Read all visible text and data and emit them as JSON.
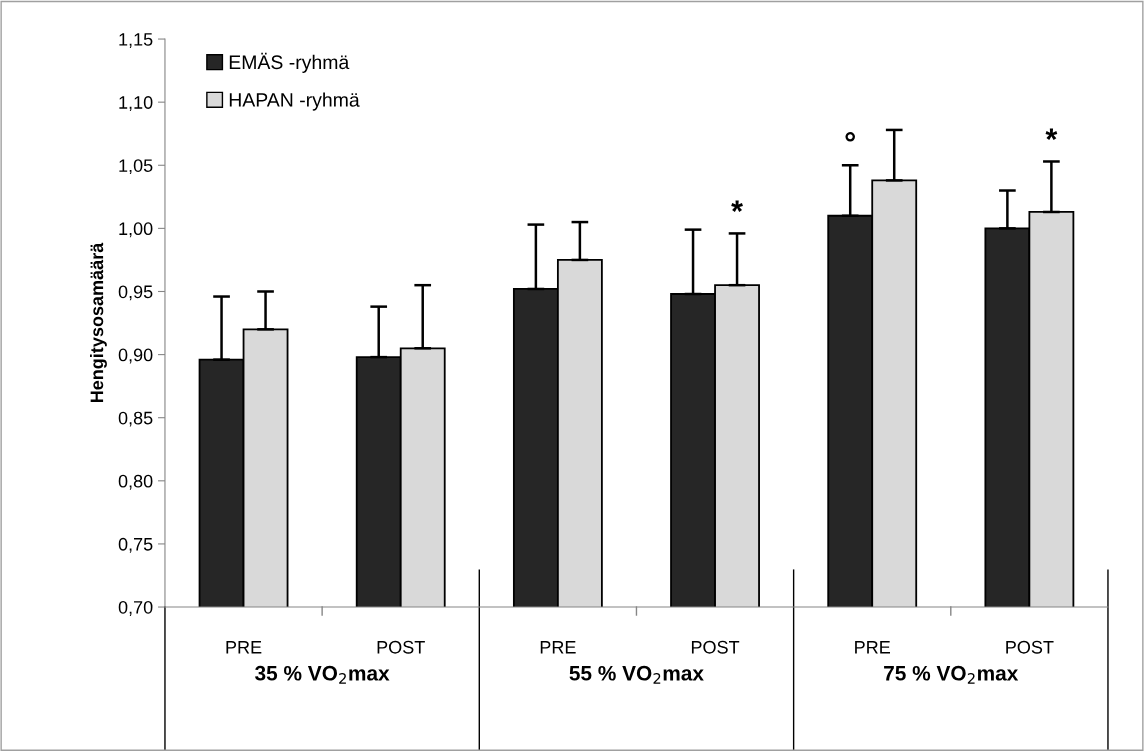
{
  "chart_data": {
    "type": "bar",
    "ylabel": "Hengitysosamäärä",
    "categories": [
      "PRE",
      "POST",
      "PRE",
      "POST",
      "PRE",
      "POST"
    ],
    "series": [
      {
        "name": "EMÄS -ryhmä",
        "color": "#262626",
        "values": [
          0.896,
          0.898,
          0.952,
          0.948,
          1.01,
          1.0
        ],
        "errors": [
          [
            0.896,
            0.946
          ],
          [
            0.898,
            0.938
          ],
          [
            0.952,
            1.003
          ],
          [
            0.948,
            0.999
          ],
          [
            1.01,
            1.05
          ],
          [
            1.0,
            1.03
          ]
        ],
        "value_labels": [
          null,
          null,
          null,
          null,
          "°",
          null
        ]
      },
      {
        "name": "HAPAN -ryhmä",
        "color": "#d9d9d9",
        "values": [
          0.92,
          0.905,
          0.975,
          0.955,
          1.038,
          1.013
        ],
        "errors": [
          [
            0.92,
            0.95
          ],
          [
            0.905,
            0.955
          ],
          [
            0.975,
            1.005
          ],
          [
            0.955,
            0.996
          ],
          [
            1.038,
            1.078
          ],
          [
            1.013,
            1.053
          ]
        ],
        "value_labels": [
          null,
          null,
          null,
          "*",
          null,
          "*"
        ]
      }
    ],
    "annotations": [
      "35 % VO$_{2}$max",
      "55 % VO$_{2}$max",
      "75 % VO$_{2}$max"
    ],
    "ylim": [
      0.7,
      1.15
    ],
    "yticks": [
      {
        "value": 0.7,
        "label": "0,70"
      },
      {
        "value": 0.75,
        "label": "0,75"
      },
      {
        "value": 0.8,
        "label": "0,80"
      },
      {
        "value": 0.85,
        "label": "0,85"
      },
      {
        "value": 0.9,
        "label": "0,90"
      },
      {
        "value": 0.95,
        "label": "0,95"
      },
      {
        "value": 1.0,
        "label": "1,00"
      },
      {
        "value": 1.05,
        "label": "1,05"
      },
      {
        "value": 1.1,
        "label": "1,10"
      },
      {
        "value": 1.15,
        "label": "1,15"
      }
    ],
    "grid": false,
    "legend": "top left"
  }
}
